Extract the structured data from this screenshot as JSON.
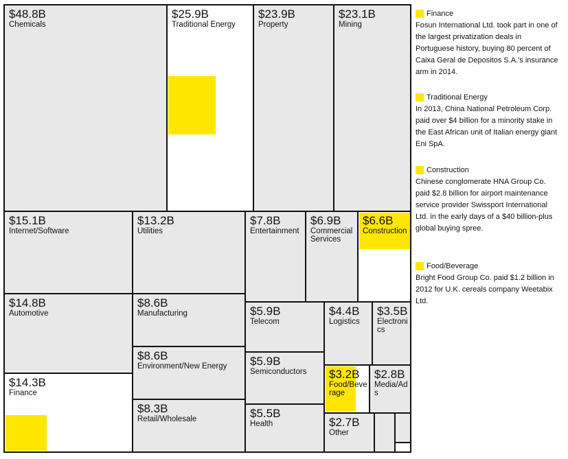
{
  "chart_data": {
    "type": "treemap",
    "categories": [
      "Chemicals",
      "Traditional Energy",
      "Property",
      "Mining",
      "Internet/Software",
      "Utilities",
      "Entertainment",
      "Commercial Services",
      "Construction",
      "Automotive",
      "Manufacturing",
      "Telecom",
      "Logistics",
      "Electronics",
      "Environment/New Energy",
      "Semiconductors",
      "Finance",
      "Food/Beverage",
      "Media/Ads",
      "Retail/Wholesale",
      "Health",
      "Other"
    ],
    "values": [
      48.8,
      25.9,
      23.9,
      23.1,
      15.1,
      13.2,
      7.8,
      6.9,
      6.6,
      14.8,
      8.6,
      5.9,
      4.4,
      3.5,
      8.6,
      5.9,
      14.3,
      3.2,
      2.8,
      8.3,
      5.5,
      2.7
    ],
    "value_labels": [
      "$48.8B",
      "$25.9B",
      "$23.9B",
      "$23.1B",
      "$15.1B",
      "$13.2B",
      "$7.8B",
      "$6.9B",
      "$6.6B",
      "$14.8B",
      "$8.6B",
      "$5.9B",
      "$4.4B",
      "$3.5B",
      "$8.6B",
      "$5.9B",
      "$14.3B",
      "$3.2B",
      "$2.8B",
      "$8.3B",
      "$5.5B",
      "$2.7B"
    ],
    "color": "#e8e8e8",
    "highlight_color": "#ffe600",
    "annotations": [
      {
        "title": "Finance",
        "text": "Fosun International Ltd. took part in one of the largest privatization deals in Portuguese history, buying 80 percent of Caixa Geral de Depositos S.A.'s insurance arm in 2014."
      },
      {
        "title": "Traditional Energy",
        "text": "In 2013, China National Petroleum Corp. paid over $4 billion for a minority stake in the East African unit of Italian energy giant Eni SpA."
      },
      {
        "title": "Construction",
        "text": "Chinese conglomerate HNA Group Co. paid $2.8 billion for airport maintenance service provider Swissport International Ltd. in the early days of a $40 billion-plus global buying spree."
      },
      {
        "title": "Food/Beverage",
        "text": "Bright Food Group Co. paid $1.2 billion in 2012 for U.K. cereals company Weetabix Ltd."
      }
    ]
  }
}
